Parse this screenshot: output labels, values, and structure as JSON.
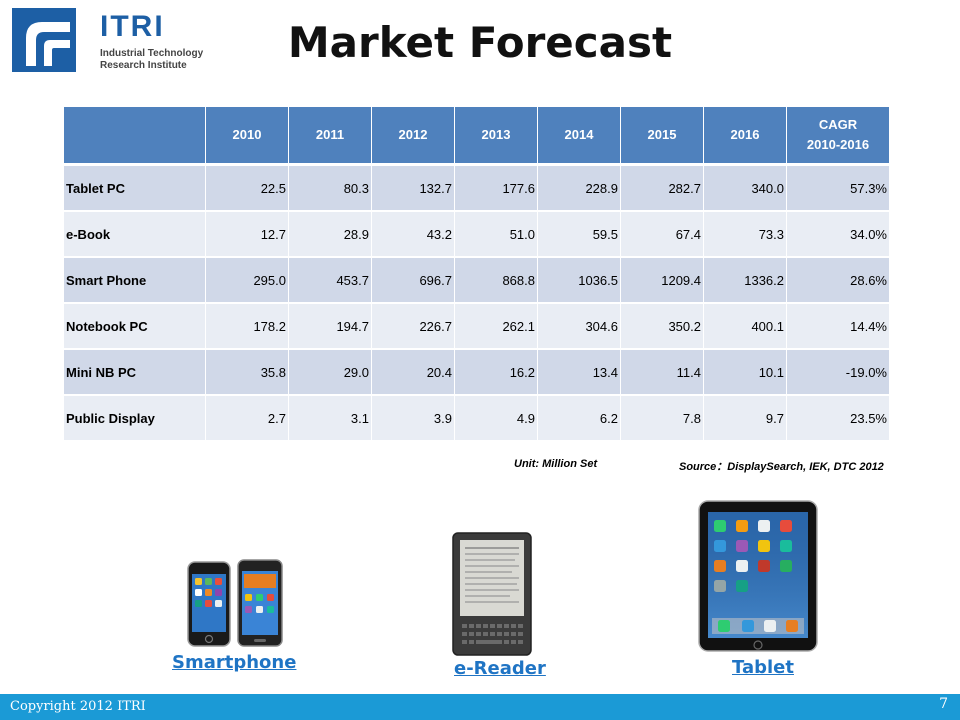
{
  "logo": {
    "name": "ITRI",
    "line1": "Industrial Technology",
    "line2": "Research Institute",
    "mark_color": "#1d5fa5"
  },
  "title": "Market Forecast",
  "table": {
    "header": [
      "",
      "2010",
      "2011",
      "2012",
      "2013",
      "2014",
      "2015",
      "2016"
    ],
    "cagr_header_line1": "CAGR",
    "cagr_header_line2": "2010-2016",
    "rows": [
      {
        "label": "Tablet PC",
        "values": [
          "22.5",
          "80.3",
          "132.7",
          "177.6",
          "228.9",
          "282.7",
          "340.0",
          "57.3%"
        ]
      },
      {
        "label": "e-Book",
        "values": [
          "12.7",
          "28.9",
          "43.2",
          "51.0",
          "59.5",
          "67.4",
          "73.3",
          "34.0%"
        ]
      },
      {
        "label": "Smart Phone",
        "values": [
          "295.0",
          "453.7",
          "696.7",
          "868.8",
          "1036.5",
          "1209.4",
          "1336.2",
          "28.6%"
        ]
      },
      {
        "label": "Notebook PC",
        "values": [
          "178.2",
          "194.7",
          "226.7",
          "262.1",
          "304.6",
          "350.2",
          "400.1",
          "14.4%"
        ]
      },
      {
        "label": "Mini NB PC",
        "values": [
          "35.8",
          "29.0",
          "20.4",
          "16.2",
          "13.4",
          "11.4",
          "10.1",
          "-19.0%"
        ]
      },
      {
        "label": "Public Display",
        "values": [
          "2.7",
          "3.1",
          "3.9",
          "4.9",
          "6.2",
          "7.8",
          "9.7",
          "23.5%"
        ]
      }
    ],
    "header_color": "#4f81bd",
    "odd_row_color": "#d0d8e8",
    "even_row_color": "#e9edf4"
  },
  "notes": {
    "unit": "Unit: Million Set",
    "source": "Source：DisplaySearch, IEK, DTC 2012"
  },
  "devices": {
    "smartphone_label": "Smartphone",
    "ereader_label": "e-Reader",
    "tablet_label": "Tablet",
    "link_color": "#1f74c4"
  },
  "footer": {
    "copyright": "Copyright 2012 ITRI",
    "page": "7",
    "bar_color": "#1b9ad6"
  }
}
